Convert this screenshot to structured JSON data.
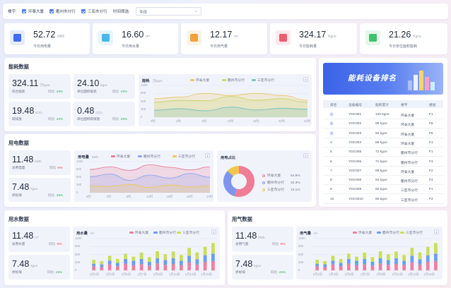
{
  "filter": {
    "building_label": "楼宇:",
    "buildings": [
      "环泰大厦",
      "衢州市分行",
      "三亚市分行"
    ],
    "time_label": "时间筛选:",
    "time_value": "今日"
  },
  "kpis": [
    {
      "value": "52.72",
      "unit": "kWh",
      "label": "今日用电量",
      "color": "#3f6ef0",
      "icon": "lightning-icon"
    },
    {
      "value": "16.60",
      "unit": "m³",
      "label": "今日用水量",
      "color": "#46b8ee",
      "icon": "water-drop-icon"
    },
    {
      "value": "12.17",
      "unit": "m³",
      "label": "今日用气量",
      "color": "#f0a33c",
      "icon": "flame-icon"
    },
    {
      "value": "324.17",
      "unit": "Kgce",
      "label": "今日能耗量",
      "color": "#ef5a70",
      "icon": "energy-icon"
    },
    {
      "value": "21.26",
      "unit": "Kgce",
      "label": "今日单位面积能耗",
      "color": "#3fc36a",
      "icon": "area-icon"
    }
  ],
  "energy": {
    "title": "能耗数据",
    "stats": [
      {
        "value": "324.11",
        "unit": "万kgce",
        "label": "综合能耗",
        "trend_label": "同比",
        "trend": "-45%"
      },
      {
        "value": "24.10",
        "unit": "kgce",
        "label": "单位面积能耗",
        "trend_label": "同比",
        "trend": "-45%"
      },
      {
        "value": "19.48",
        "unit": "tCO₂",
        "label": "碳排放",
        "trend_label": "同比",
        "trend": "-45%"
      },
      {
        "value": "0.48",
        "unit": "tCO₂",
        "label": "单位面积碳排放",
        "trend_label": "同比",
        "trend": "-45%"
      }
    ],
    "chart_title": "能耗",
    "chart_unit": "万kgce"
  },
  "power": {
    "title": "用电数据",
    "stats": [
      {
        "value": "11.48",
        "unit": "kWh",
        "label": "总用电量",
        "trend_label": "同比",
        "trend": "-8%"
      },
      {
        "value": "7.48",
        "unit": "kgce",
        "label": "折标煤",
        "trend_label": "同比",
        "trend": "-45%"
      }
    ],
    "chart_title": "用电量",
    "chart_unit": "kWh",
    "share_title": "用电占比",
    "share": [
      {
        "name": "环泰大厦",
        "pct": "54.9%",
        "value": 54.9,
        "color": "#ef7d95"
      },
      {
        "name": "衢州市分行",
        "pct": "32.3%",
        "value": 32.3,
        "color": "#7d95ef"
      },
      {
        "name": "三亚市分行",
        "pct": "13.1%",
        "value": 13.1,
        "color": "#f2c64a"
      }
    ]
  },
  "water": {
    "title": "用水数据",
    "stats": [
      {
        "value": "11.48",
        "unit": "m³",
        "label": "总用水量",
        "trend_label": "同比",
        "trend": "-8%"
      },
      {
        "value": "7.48",
        "unit": "kgce",
        "label": "折标煤",
        "trend_label": "同比",
        "trend": "-45%"
      }
    ],
    "chart_title": "用水量",
    "chart_unit": "m³"
  },
  "gas": {
    "title": "用气数据",
    "stats": [
      {
        "value": "11.48",
        "unit": "kWh",
        "label": "总用气量",
        "trend_label": "同比",
        "trend": "-8%"
      },
      {
        "value": "7.48",
        "unit": "kgce",
        "label": "折标煤",
        "trend_label": "同比",
        "trend": "-45%"
      }
    ],
    "chart_title": "用气量",
    "chart_unit": "m³"
  },
  "rank": {
    "banner": "能耗设备排名",
    "headers": [
      "排名",
      "设备编号",
      "能耗累计",
      "楼宇",
      "楼层"
    ],
    "rows": [
      [
        "1",
        "YDC001",
        "120 kgce",
        "环泰大厦",
        "F1"
      ],
      [
        "2",
        "YDC002",
        "98 kgce",
        "环泰大厦",
        "F5"
      ],
      [
        "3",
        "YDC003",
        "92 kgce",
        "环泰大厦",
        "F5"
      ],
      [
        "4",
        "YDC004",
        "88 kgce",
        "环泰大厦",
        "F1"
      ],
      [
        "5",
        "YDC005",
        "72 kgce",
        "衢州市分行",
        "F1"
      ],
      [
        "6",
        "YDC006",
        "71 kgce",
        "衢州市分行",
        "F3"
      ],
      [
        "7",
        "YDC007",
        "66 kgce",
        "环泰大厦",
        "F2"
      ],
      [
        "8",
        "YDC008",
        "64 kgce",
        "衢州市分行",
        "F4"
      ],
      [
        "9",
        "YDC009",
        "60 kgce",
        "三亚市分行",
        "F1"
      ],
      [
        "10",
        "YDC0010",
        "60 kgce",
        "三亚市分行",
        "F2"
      ]
    ]
  },
  "chart_data": [
    {
      "type": "area",
      "name": "能耗",
      "x": [
        "0时",
        "4时",
        "8时",
        "12时",
        "16时",
        "20时",
        "24时"
      ],
      "yticks": [
        "1200",
        "900",
        "600",
        "300",
        "0"
      ],
      "ylim": [
        0,
        1200
      ],
      "series": [
        {
          "name": "环泰大厦",
          "color": "#ecc86a",
          "values": [
            700,
            760,
            900,
            820,
            900,
            820,
            640
          ]
        },
        {
          "name": "衢州市分行",
          "color": "#c9d86a",
          "values": [
            560,
            640,
            620,
            780,
            640,
            700,
            560
          ]
        },
        {
          "name": "三亚市分行",
          "color": "#79c4c6",
          "values": [
            260,
            320,
            240,
            380,
            270,
            340,
            300
          ]
        }
      ]
    },
    {
      "type": "area",
      "name": "用电量",
      "x": [
        "0时",
        "4时",
        "8时",
        "12时",
        "16时",
        "20时",
        "24时"
      ],
      "yticks": [
        "1200",
        "900",
        "600",
        "300",
        "0"
      ],
      "ylim": [
        0,
        1200
      ],
      "series": [
        {
          "name": "环泰大厦",
          "color": "#e87f97",
          "values": [
            900,
            1000,
            860,
            1080,
            980,
            880,
            1000
          ]
        },
        {
          "name": "衢州市分行",
          "color": "#8ea5f0",
          "values": [
            620,
            720,
            480,
            680,
            560,
            740,
            600
          ]
        },
        {
          "name": "三亚市分行",
          "color": "#f0c95a",
          "values": [
            260,
            240,
            320,
            200,
            300,
            220,
            260
          ]
        }
      ]
    },
    {
      "type": "bar",
      "stacked": true,
      "name": "用水量",
      "categories": [
        "1月1日",
        "1月2日",
        "1月3日",
        "1月4日",
        "1月5日",
        "1月6日",
        "1月7日",
        "1月8日",
        "1月9日",
        "1月10日",
        "1月11日",
        "1月12日",
        "1月13日",
        "1月14日",
        "1月15日",
        "1月16日"
      ],
      "yticks": [
        "1200",
        "900",
        "600",
        "300",
        "0"
      ],
      "ylim": [
        0,
        1200
      ],
      "series": [
        {
          "name": "环泰大厦",
          "color": "#ec7fa0",
          "values": [
            150,
            120,
            220,
            160,
            250,
            200,
            230,
            180,
            260,
            210,
            240,
            200,
            300,
            220,
            320,
            350
          ]
        },
        {
          "name": "衢州市分行",
          "color": "#6a9ef0",
          "values": [
            100,
            110,
            150,
            120,
            180,
            160,
            200,
            140,
            200,
            180,
            220,
            160,
            250,
            200,
            250,
            280
          ]
        },
        {
          "name": "三亚市分行",
          "color": "#c9de5a",
          "values": [
            150,
            120,
            180,
            150,
            200,
            160,
            240,
            180,
            260,
            220,
            250,
            220,
            300,
            260,
            320,
            400
          ]
        }
      ]
    },
    {
      "type": "bar",
      "stacked": true,
      "name": "用气量",
      "categories": [
        "1月1日",
        "1月2日",
        "1月3日",
        "1月4日",
        "1月5日",
        "1月6日",
        "1月7日",
        "1月8日",
        "1月9日",
        "1月10日",
        "1月11日",
        "1月12日",
        "1月13日",
        "1月14日",
        "1月15日",
        "1月16日"
      ],
      "yticks": [
        "1200",
        "900",
        "600",
        "300",
        "0"
      ],
      "ylim": [
        0,
        1200
      ],
      "series": [
        {
          "name": "环泰大厦",
          "color": "#ec7fa0",
          "values": [
            150,
            120,
            220,
            160,
            250,
            200,
            230,
            180,
            260,
            210,
            240,
            200,
            300,
            220,
            320,
            350
          ]
        },
        {
          "name": "衢州市分行",
          "color": "#6a9ef0",
          "values": [
            100,
            110,
            150,
            120,
            180,
            160,
            200,
            140,
            200,
            180,
            220,
            160,
            250,
            200,
            250,
            280
          ]
        },
        {
          "name": "三亚市分行",
          "color": "#c9de5a",
          "values": [
            150,
            120,
            180,
            150,
            200,
            160,
            240,
            180,
            260,
            220,
            250,
            220,
            300,
            260,
            320,
            400
          ]
        }
      ]
    }
  ]
}
